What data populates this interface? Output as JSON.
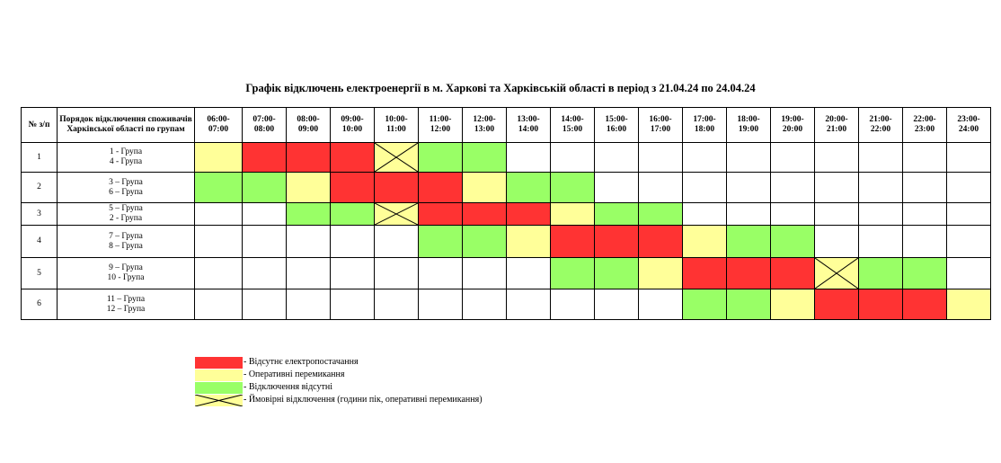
{
  "title": "Графік відключень електроенергії в м. Харкові та Харківській області в період з 21.04.24 по 24.04.24",
  "colors": {
    "R": "#ff3333",
    "Y": "#ffff99",
    "G": "#99ff66",
    "X": "#ffff99",
    "W": "#ffffff"
  },
  "table": {
    "num_header": "№ з/п",
    "group_header": "Порядок відключення споживачів Харківської області по групам",
    "hours": [
      "06:00-\n07:00",
      "07:00-\n08:00",
      "08:00-\n09:00",
      "09:00-\n10:00",
      "10:00-\n11:00",
      "11:00-\n12:00",
      "12:00-\n13:00",
      "13:00-\n14:00",
      "14:00-\n15:00",
      "15:00-\n16:00",
      "16:00-\n17:00",
      "17:00-\n18:00",
      "18:00-\n19:00",
      "19:00-\n20:00",
      "20:00-\n21:00",
      "21:00-\n22:00",
      "22:00-\n23:00",
      "23:00-\n24:00"
    ],
    "rows": [
      {
        "num": "1",
        "group_a": "1 - Група",
        "group_b": "4 -  Група",
        "cells": [
          "Y",
          "R",
          "R",
          "R",
          "X",
          "G",
          "G",
          "W",
          "W",
          "W",
          "W",
          "W",
          "W",
          "W",
          "W",
          "W",
          "W",
          "W"
        ]
      },
      {
        "num": "2",
        "group_a": "3 – Група",
        "group_b": "6 – Група",
        "cells": [
          "G",
          "G",
          "Y",
          "R",
          "R",
          "R",
          "Y",
          "G",
          "G",
          "W",
          "W",
          "W",
          "W",
          "W",
          "W",
          "W",
          "W",
          "W"
        ]
      },
      {
        "num": "3",
        "group_a": "5 – Група",
        "group_b": "2  - Група",
        "cells": [
          "W",
          "W",
          "G",
          "G",
          "X",
          "R",
          "R",
          "R",
          "Y",
          "G",
          "G",
          "W",
          "W",
          "W",
          "W",
          "W",
          "W",
          "W"
        ]
      },
      {
        "num": "4",
        "group_a": "7 – Група",
        "group_b": "8 – Група",
        "cells": [
          "W",
          "W",
          "W",
          "W",
          "W",
          "G",
          "G",
          "Y",
          "R",
          "R",
          "R",
          "Y",
          "G",
          "G",
          "W",
          "W",
          "W",
          "W"
        ]
      },
      {
        "num": "5",
        "group_a": "9 – Група",
        "group_b": "10 - Група",
        "cells": [
          "W",
          "W",
          "W",
          "W",
          "W",
          "W",
          "W",
          "W",
          "G",
          "G",
          "Y",
          "R",
          "R",
          "R",
          "X",
          "G",
          "G",
          "W"
        ]
      },
      {
        "num": "6",
        "group_a": "11 – Група",
        "group_b": "12 – Група",
        "cells": [
          "W",
          "W",
          "W",
          "W",
          "W",
          "W",
          "W",
          "W",
          "W",
          "W",
          "W",
          "G",
          "G",
          "Y",
          "R",
          "R",
          "R",
          "Y"
        ]
      }
    ]
  },
  "legend": [
    {
      "color": "R",
      "label": "- Відсутнє електропостачання"
    },
    {
      "color": "Y",
      "label": "- Оперативні перемикання"
    },
    {
      "color": "G",
      "label": "- Відключення відсутні"
    },
    {
      "color": "X",
      "label": "- Ймовірні відключення (години пік, оперативні перемикання)"
    }
  ]
}
